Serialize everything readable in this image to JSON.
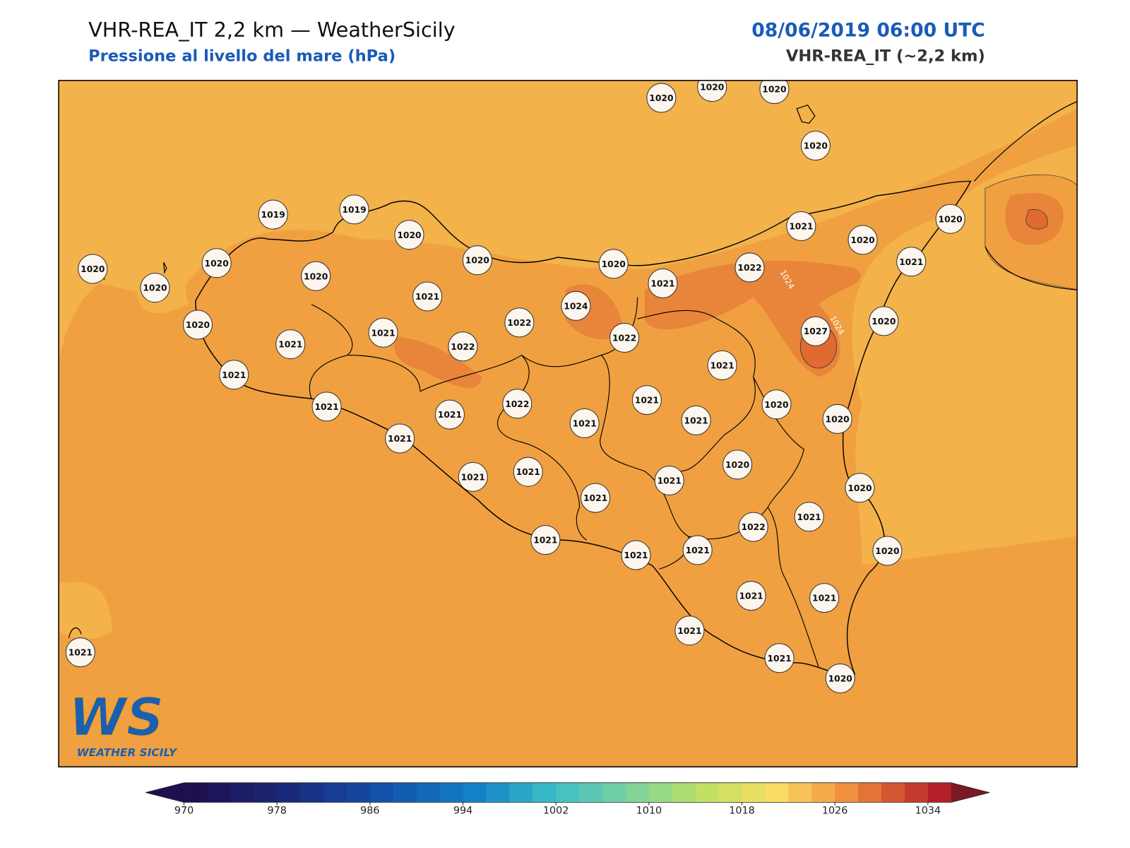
{
  "header": {
    "title": "VHR-REA_IT 2,2 km — WeatherSicily",
    "subtitle": "Pressione al livello del mare (hPa)",
    "date": "08/06/2019 06:00 UTC",
    "model": "VHR-REA_IT (~2,2 km)"
  },
  "stations": [
    1020,
    1020,
    1020,
    1020,
    1019,
    1019,
    1020,
    1020,
    1020,
    1020,
    1020,
    1020,
    1020,
    1021,
    1020,
    1020,
    1021,
    1021,
    1022,
    1021,
    1024,
    1020,
    1022,
    1022,
    1027,
    1020,
    1021,
    1021,
    1022,
    1021,
    1021,
    1021,
    1022,
    1021,
    1020,
    1021,
    1021,
    1021,
    1020,
    1021,
    1020,
    1021,
    1021,
    1021,
    1020,
    1021,
    1021,
    1022,
    1021,
    1021,
    1021,
    1020,
    1021,
    1021,
    1021,
    1021,
    1021,
    1020
  ],
  "contour_labels": [
    1024,
    1024
  ],
  "colorbar": {
    "ticks": [
      970,
      978,
      986,
      994,
      1002,
      1010,
      1018,
      1026,
      1034
    ]
  },
  "logo": {
    "mark": "WS",
    "text": "WEATHER SICILY"
  }
}
